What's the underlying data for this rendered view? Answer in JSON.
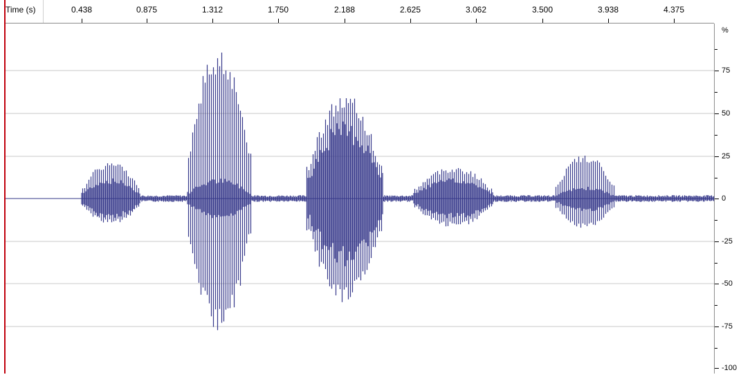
{
  "time_ruler": {
    "label": "Time (s)",
    "ticks": [
      "0.438",
      "0.875",
      "1.312",
      "1.750",
      "2.188",
      "2.625",
      "3.062",
      "3.500",
      "3.938",
      "4.375"
    ]
  },
  "amplitude_ruler": {
    "unit": "%",
    "ticks": [
      "75",
      "50",
      "25",
      "0",
      "-25",
      "-50",
      "-75",
      "-100"
    ]
  },
  "colors": {
    "waveform": "#36388a",
    "gridline": "#c8c8c8",
    "playhead": "#c0000c"
  }
}
